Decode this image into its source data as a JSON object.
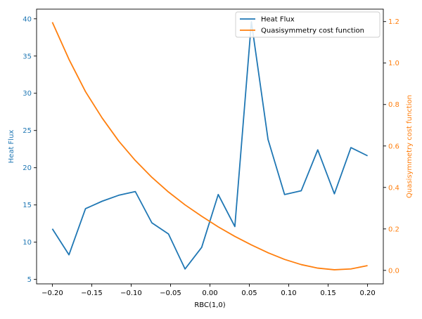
{
  "chart_data": {
    "type": "line",
    "title": "",
    "xlabel": "RBC(1,0)",
    "ylabel_left": "Heat Flux",
    "ylabel_right": "Quasisymmetry cost function",
    "xlim": [
      -0.22,
      0.22
    ],
    "ylim_left": [
      4.4,
      41.3
    ],
    "ylim_right": [
      -0.065,
      1.26
    ],
    "x_ticks": [
      -0.2,
      -0.15,
      -0.1,
      -0.05,
      0.0,
      0.05,
      0.1,
      0.15,
      0.2
    ],
    "x_tick_labels": [
      "−0.20",
      "−0.15",
      "−0.10",
      "−0.05",
      "0.00",
      "0.05",
      "0.10",
      "0.15",
      "0.20"
    ],
    "y_left_ticks": [
      5,
      10,
      15,
      20,
      25,
      30,
      35,
      40
    ],
    "y_left_tick_labels": [
      "5",
      "10",
      "15",
      "20",
      "25",
      "30",
      "35",
      "40"
    ],
    "y_right_ticks": [
      0.0,
      0.2,
      0.4,
      0.6,
      0.8,
      1.0,
      1.2
    ],
    "y_right_tick_labels": [
      "0.0",
      "0.2",
      "0.4",
      "0.6",
      "0.8",
      "1.0",
      "1.2"
    ],
    "grid": false,
    "legend_position": "top-right",
    "x": [
      -0.2,
      -0.1789,
      -0.1579,
      -0.1368,
      -0.1158,
      -0.0947,
      -0.0737,
      -0.0526,
      -0.0316,
      -0.0105,
      0.0105,
      0.0316,
      0.0526,
      0.0737,
      0.0947,
      0.1158,
      0.1368,
      0.1579,
      0.1789,
      0.2
    ],
    "series": [
      {
        "name": "Heat Flux",
        "axis": "left",
        "color": "#1f77b4",
        "values": [
          11.8,
          8.3,
          14.5,
          15.5,
          16.3,
          16.8,
          12.6,
          11.1,
          6.4,
          9.3,
          16.4,
          12.1,
          39.6,
          23.8,
          16.4,
          16.9,
          22.4,
          16.5,
          22.7,
          21.6
        ]
      },
      {
        "name": "Quasisymmetry cost function",
        "axis": "right",
        "color": "#ff7f0e",
        "values": [
          1.197,
          1.018,
          0.862,
          0.735,
          0.624,
          0.53,
          0.449,
          0.378,
          0.316,
          0.261,
          0.21,
          0.164,
          0.123,
          0.085,
          0.053,
          0.028,
          0.011,
          0.003,
          0.007,
          0.023
        ]
      }
    ]
  }
}
